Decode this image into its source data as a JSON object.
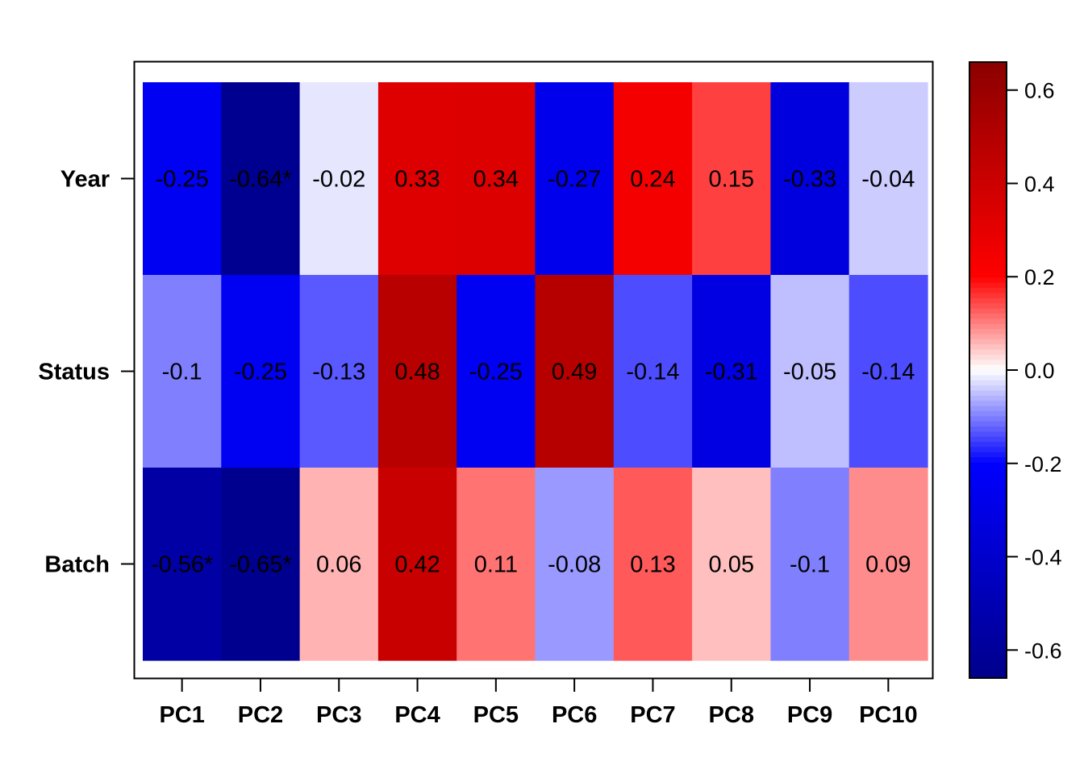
{
  "chart_data": {
    "type": "heatmap",
    "title": "",
    "xlabel": "",
    "ylabel": "",
    "columns": [
      "PC1",
      "PC2",
      "PC3",
      "PC4",
      "PC5",
      "PC6",
      "PC7",
      "PC8",
      "PC9",
      "PC10"
    ],
    "rows": [
      "Year",
      "Status",
      "Batch"
    ],
    "values": [
      [
        -0.25,
        -0.64,
        -0.02,
        0.33,
        0.34,
        -0.27,
        0.24,
        0.15,
        -0.33,
        -0.04
      ],
      [
        -0.1,
        -0.25,
        -0.13,
        0.48,
        -0.25,
        0.49,
        -0.14,
        -0.31,
        -0.05,
        -0.14
      ],
      [
        -0.56,
        -0.65,
        0.06,
        0.42,
        0.11,
        -0.08,
        0.13,
        0.05,
        -0.1,
        0.09
      ]
    ],
    "cell_labels": [
      [
        "-0.25",
        "-0.64*",
        "-0.02",
        "0.33",
        "0.34",
        "-0.27",
        "0.24",
        "0.15",
        "-0.33",
        "-0.04"
      ],
      [
        "-0.1",
        "-0.25",
        "-0.13",
        "0.48",
        "-0.25",
        "0.49",
        "-0.14",
        "-0.31",
        "-0.05",
        "-0.14"
      ],
      [
        "-0.56*",
        "-0.65*",
        "0.06",
        "0.42",
        "0.11",
        "-0.08",
        "0.13",
        "0.05",
        "-0.1",
        "0.09"
      ]
    ],
    "colorbar": {
      "range": [
        -0.66,
        0.66
      ],
      "ticks": [
        0.6,
        0.4,
        0.2,
        0.0,
        -0.2,
        -0.4,
        -0.6
      ],
      "tick_labels": [
        "0.6",
        "0.4",
        "0.2",
        "0.0",
        "-0.2",
        "-0.4",
        "-0.6"
      ],
      "position": "right"
    },
    "colors": {
      "neg_extreme": "#00008b",
      "neg_mid": "#0000ff",
      "zero": "#ffffff",
      "pos_mid": "#ff0000",
      "pos_extreme": "#8b0000"
    },
    "grid": false
  }
}
